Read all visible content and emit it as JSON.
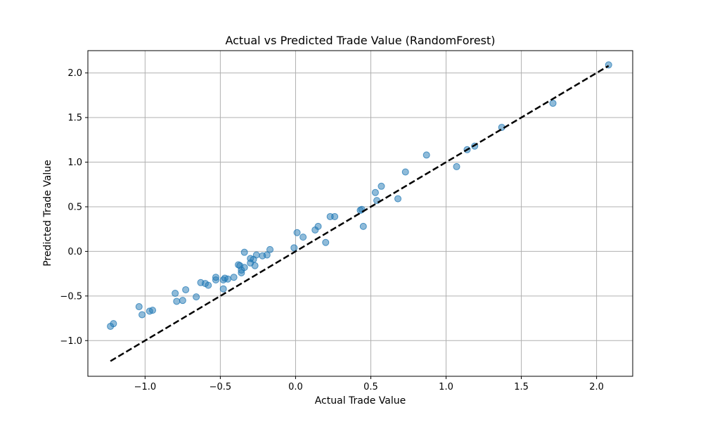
{
  "chart_data": {
    "type": "scatter",
    "title": "Actual vs Predicted Trade Value (RandomForest)",
    "xlabel": "Actual Trade Value",
    "ylabel": "Predicted Trade Value",
    "xlim": [
      -1.38,
      2.24
    ],
    "ylim": [
      -1.4,
      2.25
    ],
    "xticks": [
      -1.0,
      -0.5,
      0.0,
      0.5,
      1.0,
      1.5,
      2.0
    ],
    "xtick_labels": [
      "−1.0",
      "−0.5",
      "0.0",
      "0.5",
      "1.0",
      "1.5",
      "2.0"
    ],
    "yticks": [
      -1.0,
      -0.5,
      0.0,
      0.5,
      1.0,
      1.5,
      2.0
    ],
    "ytick_labels": [
      "−1.0",
      "−0.5",
      "0.0",
      "0.5",
      "1.0",
      "1.5",
      "2.0"
    ],
    "grid": true,
    "marker_color": "#1f77b4",
    "marker_alpha": 0.5,
    "reference_line": {
      "style": "dashed",
      "color": "#000000",
      "x": [
        -1.23,
        2.08
      ],
      "y": [
        -1.23,
        2.08
      ]
    },
    "points": [
      {
        "x": -1.23,
        "y": -0.84
      },
      {
        "x": -1.21,
        "y": -0.81
      },
      {
        "x": -1.04,
        "y": -0.62
      },
      {
        "x": -1.02,
        "y": -0.71
      },
      {
        "x": -0.97,
        "y": -0.67
      },
      {
        "x": -0.95,
        "y": -0.66
      },
      {
        "x": -0.8,
        "y": -0.47
      },
      {
        "x": -0.79,
        "y": -0.56
      },
      {
        "x": -0.75,
        "y": -0.55
      },
      {
        "x": -0.73,
        "y": -0.43
      },
      {
        "x": -0.66,
        "y": -0.51
      },
      {
        "x": -0.63,
        "y": -0.35
      },
      {
        "x": -0.6,
        "y": -0.36
      },
      {
        "x": -0.58,
        "y": -0.38
      },
      {
        "x": -0.53,
        "y": -0.29
      },
      {
        "x": -0.53,
        "y": -0.32
      },
      {
        "x": -0.48,
        "y": -0.32
      },
      {
        "x": -0.48,
        "y": -0.42
      },
      {
        "x": -0.47,
        "y": -0.3
      },
      {
        "x": -0.45,
        "y": -0.31
      },
      {
        "x": -0.41,
        "y": -0.29
      },
      {
        "x": -0.38,
        "y": -0.15
      },
      {
        "x": -0.37,
        "y": -0.16
      },
      {
        "x": -0.36,
        "y": -0.21
      },
      {
        "x": -0.36,
        "y": -0.24
      },
      {
        "x": -0.34,
        "y": -0.18
      },
      {
        "x": -0.34,
        "y": -0.01
      },
      {
        "x": -0.3,
        "y": -0.08
      },
      {
        "x": -0.3,
        "y": -0.13
      },
      {
        "x": -0.28,
        "y": -0.09
      },
      {
        "x": -0.27,
        "y": -0.16
      },
      {
        "x": -0.26,
        "y": -0.04
      },
      {
        "x": -0.22,
        "y": -0.05
      },
      {
        "x": -0.19,
        "y": -0.04
      },
      {
        "x": -0.17,
        "y": 0.02
      },
      {
        "x": -0.01,
        "y": 0.04
      },
      {
        "x": 0.01,
        "y": 0.21
      },
      {
        "x": 0.05,
        "y": 0.16
      },
      {
        "x": 0.13,
        "y": 0.24
      },
      {
        "x": 0.15,
        "y": 0.28
      },
      {
        "x": 0.2,
        "y": 0.1
      },
      {
        "x": 0.23,
        "y": 0.39
      },
      {
        "x": 0.26,
        "y": 0.39
      },
      {
        "x": 0.43,
        "y": 0.46
      },
      {
        "x": 0.44,
        "y": 0.47
      },
      {
        "x": 0.45,
        "y": 0.28
      },
      {
        "x": 0.53,
        "y": 0.66
      },
      {
        "x": 0.54,
        "y": 0.57
      },
      {
        "x": 0.57,
        "y": 0.73
      },
      {
        "x": 0.68,
        "y": 0.59
      },
      {
        "x": 0.73,
        "y": 0.89
      },
      {
        "x": 0.87,
        "y": 1.08
      },
      {
        "x": 1.07,
        "y": 0.95
      },
      {
        "x": 1.14,
        "y": 1.14
      },
      {
        "x": 1.19,
        "y": 1.18
      },
      {
        "x": 1.37,
        "y": 1.39
      },
      {
        "x": 1.71,
        "y": 1.66
      },
      {
        "x": 2.08,
        "y": 2.09
      }
    ]
  }
}
